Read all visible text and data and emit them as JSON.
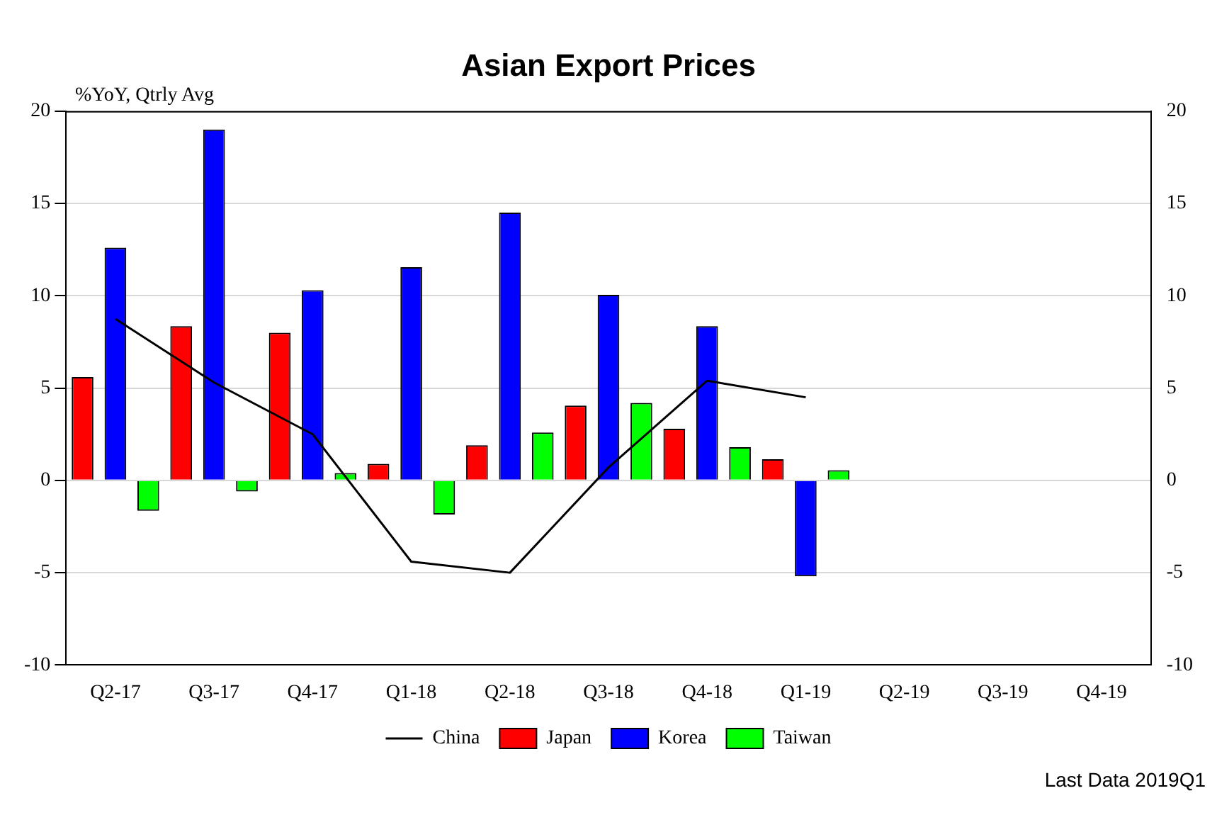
{
  "chart_data": {
    "type": "bar",
    "title": "Asian Export Prices",
    "ylabel": "%YoY, Qtrly Avg",
    "annotations": [
      "Last Data 2019Q1"
    ],
    "categories": [
      "Q2-17",
      "Q3-17",
      "Q4-17",
      "Q1-18",
      "Q2-18",
      "Q3-18",
      "Q4-18",
      "Q1-19",
      "Q2-19",
      "Q3-19",
      "Q4-19"
    ],
    "series": [
      {
        "name": "China",
        "type": "line",
        "color": "#000000",
        "values": [
          8.75,
          5.3,
          2.5,
          -4.4,
          -5.0,
          0.7,
          5.4,
          4.5,
          null,
          null,
          null
        ]
      },
      {
        "name": "Japan",
        "color": "#ff0000",
        "values": [
          5.6,
          8.35,
          8.0,
          0.9,
          1.9,
          4.05,
          2.8,
          1.15,
          null,
          null,
          null
        ]
      },
      {
        "name": "Korea",
        "color": "#0000ff",
        "values": [
          12.6,
          19.0,
          10.3,
          11.55,
          14.5,
          10.05,
          8.35,
          -5.2,
          null,
          null,
          null
        ]
      },
      {
        "name": "Taiwan",
        "color": "#00ff00",
        "values": [
          -1.65,
          -0.6,
          0.4,
          -1.85,
          2.6,
          4.2,
          1.8,
          0.55,
          null,
          null,
          null
        ]
      }
    ],
    "ylim": [
      -10,
      20
    ],
    "yticks": [
      -10,
      -5,
      0,
      5,
      10,
      15,
      20
    ],
    "y2lim": [
      -10,
      20
    ],
    "y2ticks": [
      -10,
      -5,
      0,
      5,
      10,
      15,
      20
    ],
    "grid": "y",
    "legend": "bottom",
    "marker": "none"
  }
}
